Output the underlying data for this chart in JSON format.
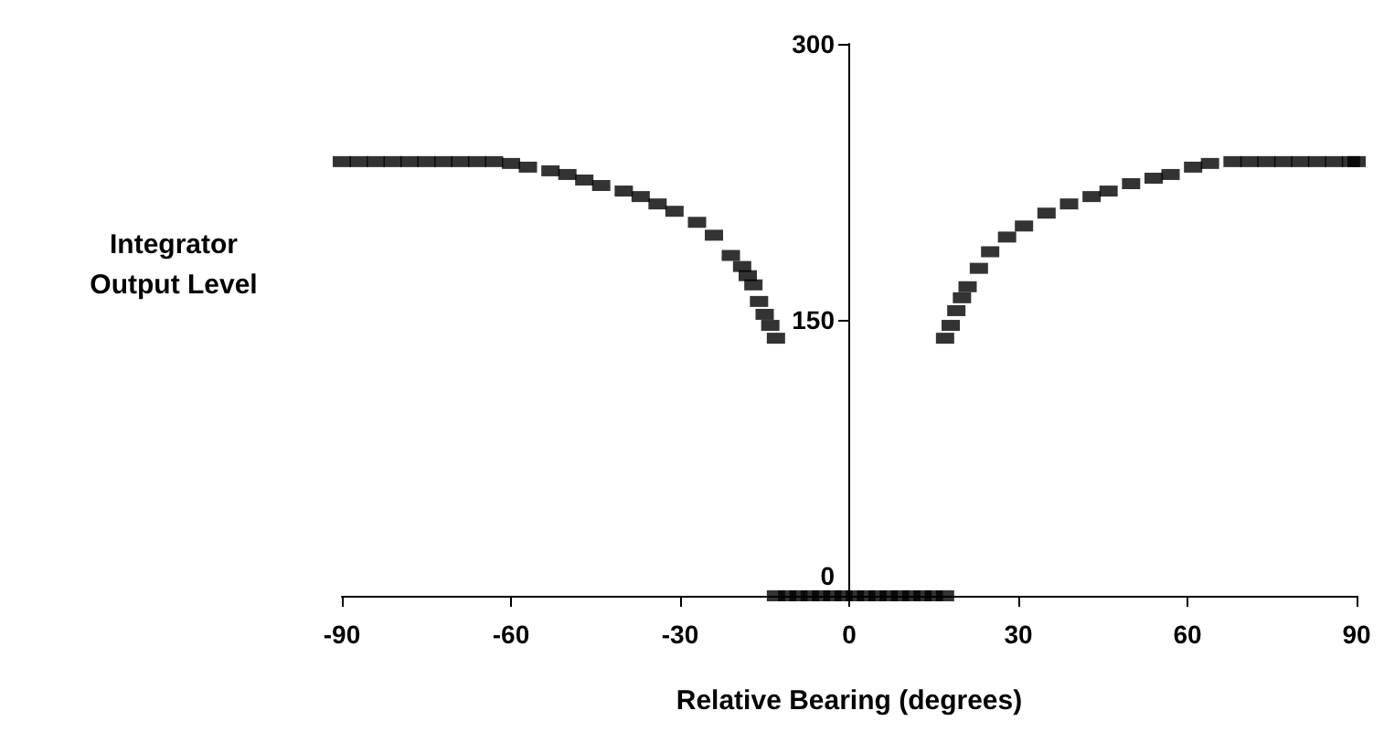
{
  "chart_data": {
    "type": "scatter",
    "xlabel": "Relative Bearing (degrees)",
    "ylabel": "Integrator\nOutput Level",
    "marker": "square",
    "x": [
      -90,
      -87,
      -84,
      -81,
      -78,
      -75,
      -72,
      -69,
      -66,
      -63,
      -60,
      -57,
      -53,
      -50,
      -47,
      -44,
      -40,
      -37,
      -34,
      -31,
      -27,
      -24,
      -21,
      -19,
      -18,
      -17,
      -16,
      -15,
      -14,
      -13,
      -13,
      -11,
      -9,
      -7,
      -5,
      -3,
      -1,
      1,
      3,
      5,
      7,
      9,
      11,
      13,
      15,
      17,
      17,
      18,
      19,
      20,
      21,
      23,
      25,
      28,
      31,
      35,
      39,
      43,
      46,
      50,
      54,
      57,
      61,
      64,
      68,
      71,
      74,
      77,
      80,
      83,
      86,
      89,
      90
    ],
    "series": [
      {
        "color": "#000000",
        "values": [
          236,
          236,
          236,
          236,
          236,
          236,
          236,
          236,
          236,
          236,
          235,
          233,
          231,
          229,
          226,
          223,
          220,
          217,
          213,
          209,
          203,
          196,
          185,
          179,
          174,
          169,
          160,
          153,
          147,
          140,
          0,
          0,
          0,
          0,
          0,
          0,
          0,
          0,
          0,
          0,
          0,
          0,
          0,
          0,
          0,
          0,
          140,
          147,
          155,
          162,
          168,
          178,
          187,
          195,
          201,
          208,
          213,
          217,
          220,
          224,
          227,
          229,
          233,
          235,
          236,
          236,
          236,
          236,
          236,
          236,
          236,
          236,
          236
        ]
      }
    ],
    "xlim": [
      -90,
      90
    ],
    "xticks": [
      -90,
      -60,
      -30,
      0,
      30,
      60,
      90
    ],
    "ylim": [
      0,
      300
    ],
    "yticks": [
      0,
      150,
      300
    ],
    "grid": false
  }
}
